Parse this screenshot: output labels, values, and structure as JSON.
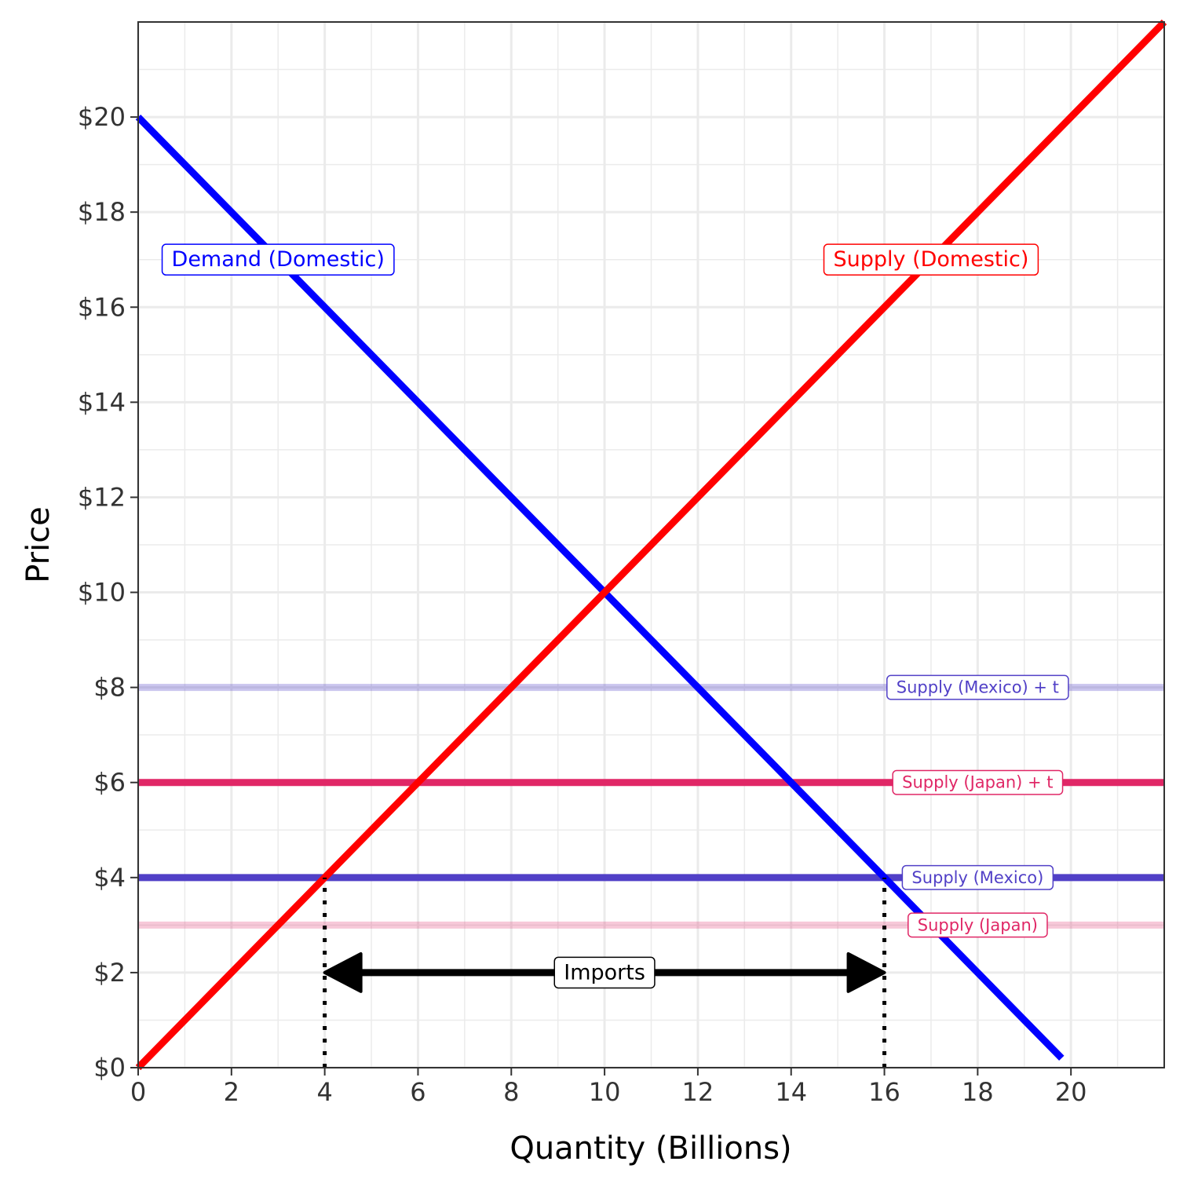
{
  "chart_data": {
    "type": "line",
    "title": "",
    "xlabel": "Quantity (Billions)",
    "ylabel": "Price",
    "xlim": [
      0,
      22
    ],
    "ylim": [
      0,
      22
    ],
    "x_ticks": [
      0,
      2,
      4,
      6,
      8,
      10,
      12,
      14,
      16,
      18,
      20
    ],
    "x_tick_labels": [
      "0",
      "2",
      "4",
      "6",
      "8",
      "10",
      "12",
      "14",
      "16",
      "18",
      "20"
    ],
    "y_ticks": [
      0,
      2,
      4,
      6,
      8,
      10,
      12,
      14,
      16,
      18,
      20
    ],
    "y_tick_labels": [
      "$0",
      "$2",
      "$4",
      "$6",
      "$8",
      "$10",
      "$12",
      "$14",
      "$16",
      "$18",
      "$20"
    ],
    "grid": true,
    "minor_grid": true,
    "series": [
      {
        "name": "Supply (Mexico) + t",
        "points": [
          [
            0,
            8
          ],
          [
            22,
            8
          ]
        ],
        "color": "#5140C7",
        "opacity": 0.3,
        "label_at": [
          18,
          8
        ]
      },
      {
        "name": "Supply (Japan)",
        "points": [
          [
            0,
            3
          ],
          [
            22,
            3
          ]
        ],
        "color": "#E02766",
        "opacity": 0.25,
        "label_at": [
          18,
          3
        ]
      },
      {
        "name": "Supply (Japan) + t",
        "points": [
          [
            0,
            6
          ],
          [
            22,
            6
          ]
        ],
        "color": "#E02766",
        "opacity": 1,
        "label_at": [
          18,
          6
        ]
      },
      {
        "name": "Supply (Mexico)",
        "points": [
          [
            0,
            4
          ],
          [
            22,
            4
          ]
        ],
        "color": "#5140C7",
        "opacity": 1,
        "label_at": [
          18,
          4
        ]
      },
      {
        "name": "Demand (Domestic)",
        "points": [
          [
            0,
            20
          ],
          [
            19.8,
            0.2
          ]
        ],
        "color": "#0000FF",
        "opacity": 1,
        "label_at": [
          3,
          17
        ]
      },
      {
        "name": "Supply (Domestic)",
        "points": [
          [
            0,
            0
          ],
          [
            22,
            22
          ]
        ],
        "color": "#FF0000",
        "opacity": 1,
        "label_at": [
          17,
          17
        ]
      }
    ],
    "reference_lines": [
      {
        "points": [
          [
            4,
            0
          ],
          [
            4,
            4
          ]
        ],
        "style": "dotted",
        "color": "#000000"
      },
      {
        "points": [
          [
            16,
            0
          ],
          [
            16,
            4
          ]
        ],
        "style": "dotted",
        "color": "#000000"
      }
    ],
    "annotations": [
      {
        "text": "Imports",
        "type": "double-arrow",
        "from": [
          4,
          2
        ],
        "to": [
          16,
          2
        ],
        "label_at": [
          10,
          2
        ],
        "color": "#000000"
      }
    ]
  }
}
